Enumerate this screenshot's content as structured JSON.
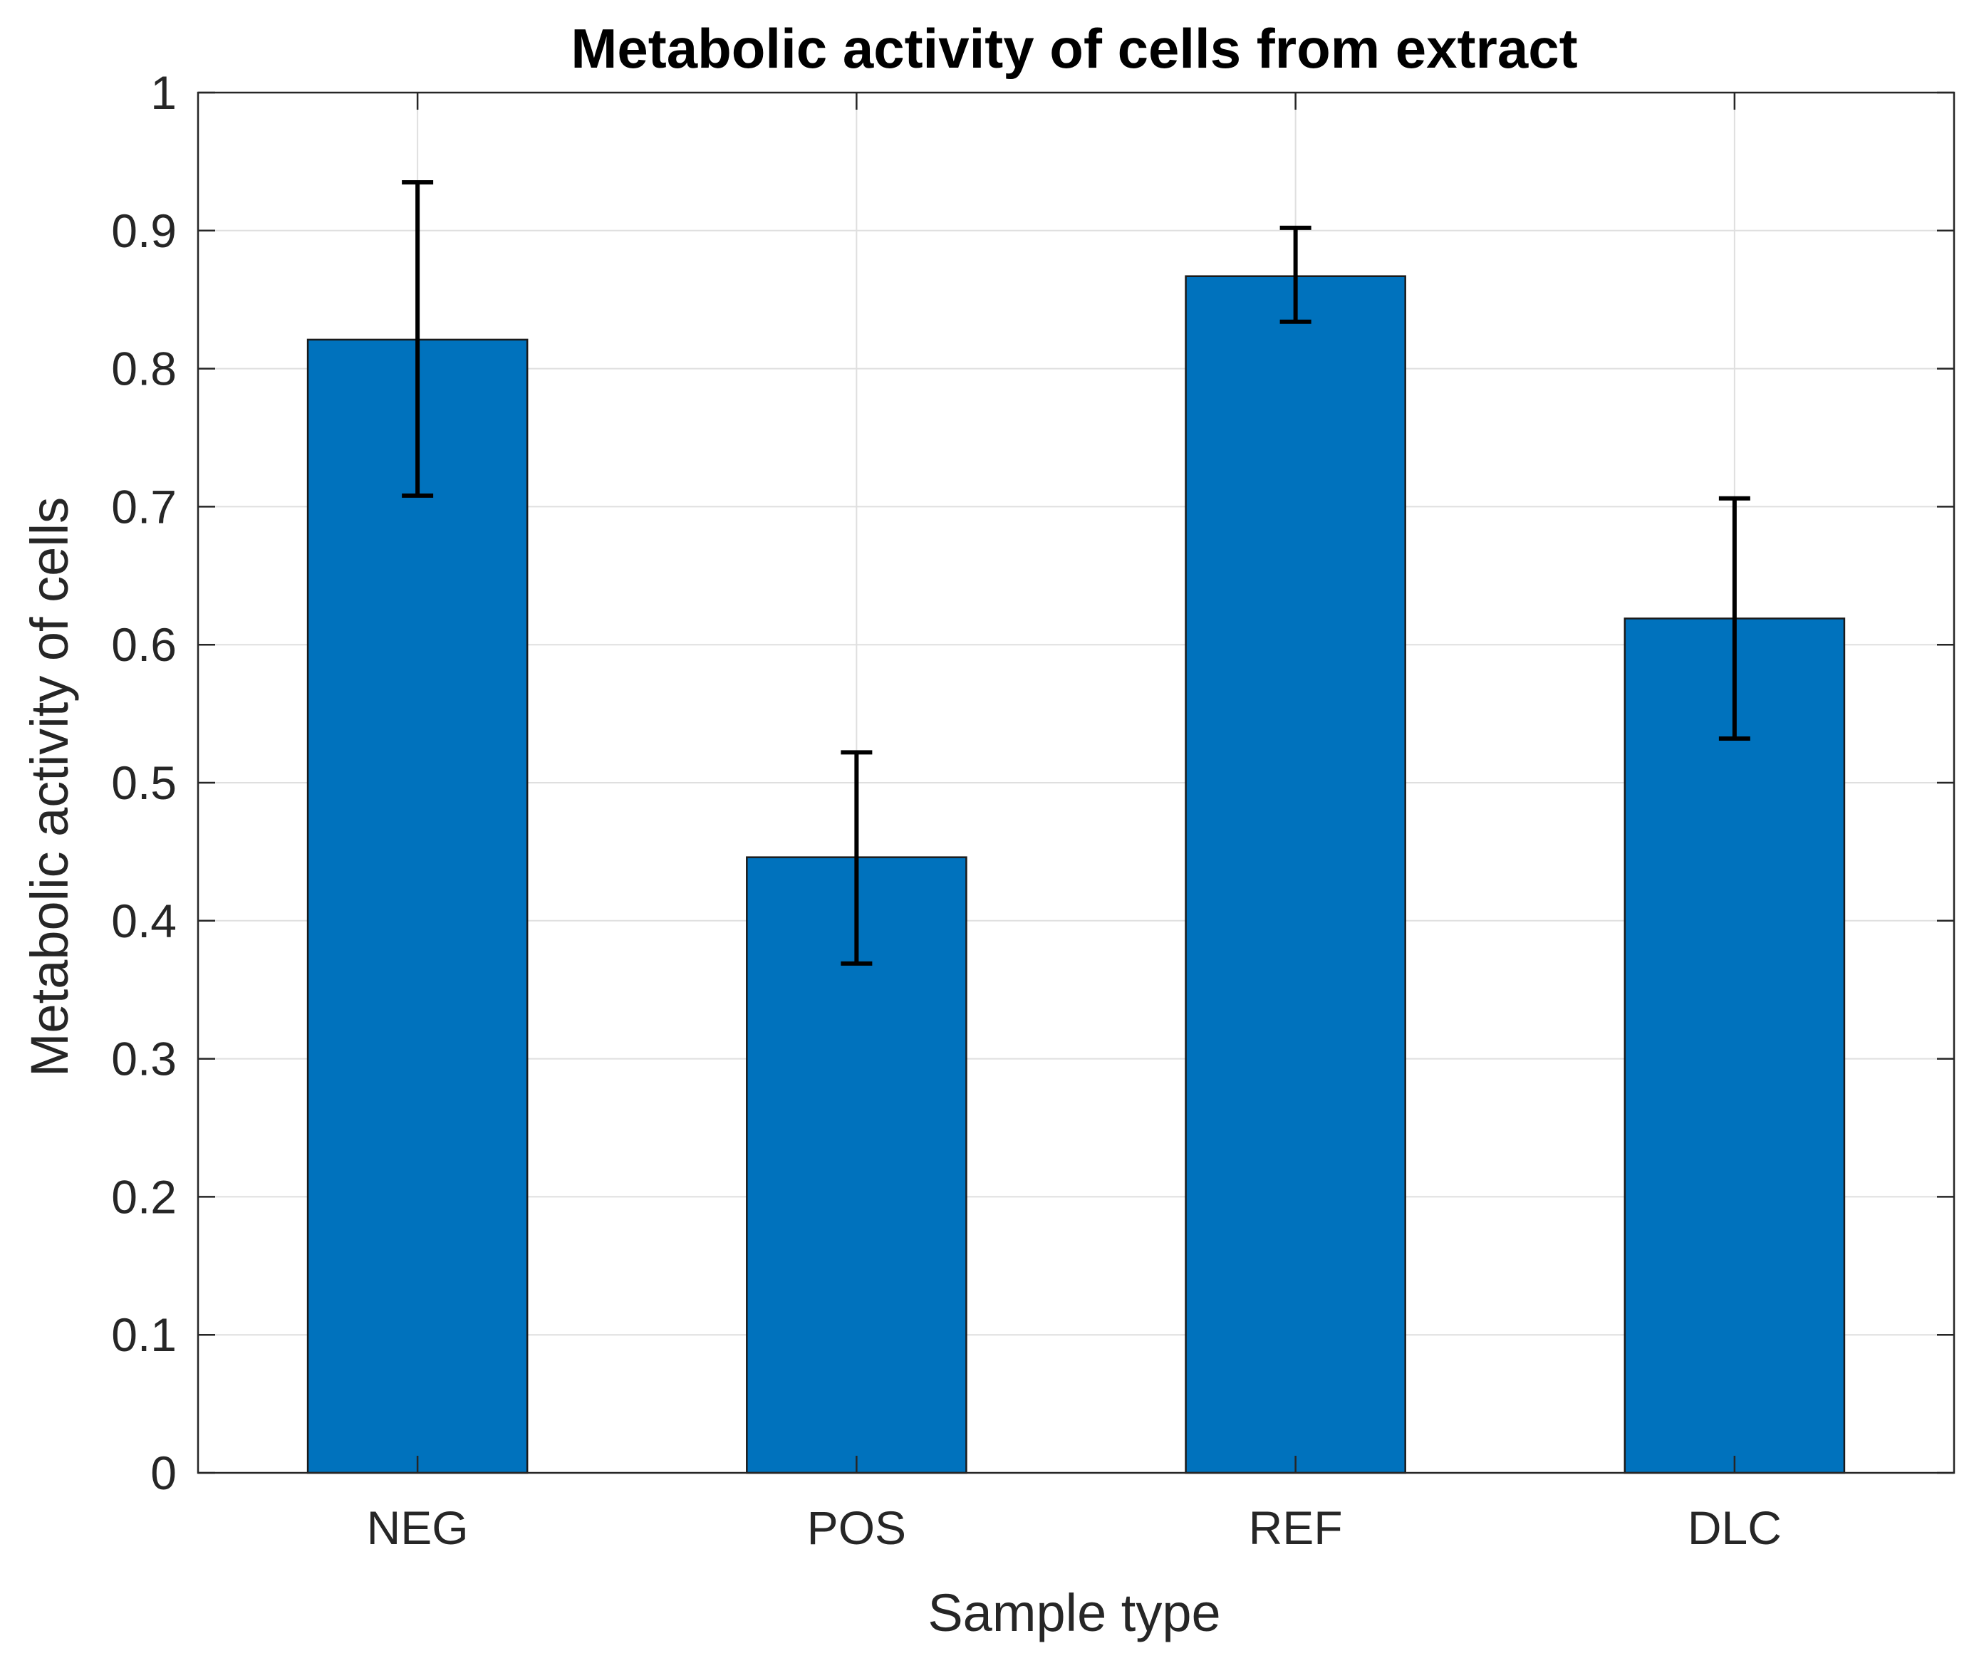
{
  "chart_data": {
    "type": "bar",
    "title": "Metabolic activity of cells from extract",
    "xlabel": "Sample type",
    "ylabel": "Metabolic activity of cells",
    "categories": [
      "NEG",
      "POS",
      "REF",
      "DLC"
    ],
    "values": [
      0.821,
      0.446,
      0.867,
      0.619
    ],
    "error_low": [
      0.708,
      0.369,
      0.834,
      0.532
    ],
    "error_high": [
      0.935,
      0.522,
      0.902,
      0.706
    ],
    "ylim": [
      0,
      1
    ],
    "yticks": [
      0,
      0.1,
      0.2,
      0.3,
      0.4,
      0.5,
      0.6,
      0.7,
      0.8,
      0.9,
      1
    ],
    "ytick_labels": [
      "0",
      "0.1",
      "0.2",
      "0.3",
      "0.4",
      "0.5",
      "0.6",
      "0.7",
      "0.8",
      "0.9",
      "1"
    ],
    "grid": true,
    "bar_color": "#0072bd",
    "legend": "none"
  }
}
